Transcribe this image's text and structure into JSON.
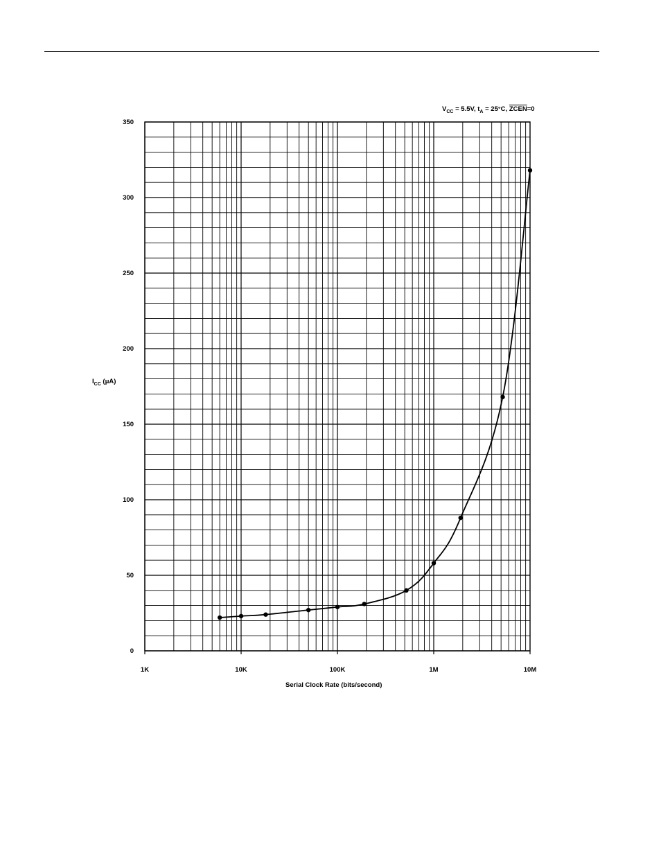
{
  "conditions": {
    "vcc_sym": "V",
    "vcc_sub": "CC",
    "vcc_val": " = 5.5V, ",
    "ta_sym": "t",
    "ta_sub": "A",
    "ta_val": " = 25°C, ",
    "zcen": "ZCEN",
    "zcen_val": "=0"
  },
  "y_axis_label": {
    "sym": "I",
    "sub": "CC",
    "unit": " (μA)"
  },
  "chart_data": {
    "type": "line",
    "title": "",
    "xlabel": "Serial Clock Rate (bits/second)",
    "ylabel": "ICC (μA)",
    "x_scale": "log",
    "xlim": [
      1000,
      10000000
    ],
    "ylim": [
      0,
      350
    ],
    "grid": true,
    "x_tick_values": [
      1000,
      10000,
      100000,
      1000000,
      10000000
    ],
    "x_tick_labels": [
      "1K",
      "10K",
      "100K",
      "1M",
      "10M"
    ],
    "y_tick_values": [
      0,
      50,
      100,
      150,
      200,
      250,
      300,
      350
    ],
    "y_tick_labels": [
      "0",
      "50",
      "100",
      "150",
      "200",
      "250",
      "300",
      "350"
    ],
    "series": [
      {
        "x": [
          6000,
          10000,
          18000,
          50000,
          100000,
          190000,
          520000,
          1000000,
          1900000,
          5200000,
          10000000
        ],
        "y": [
          22,
          23,
          24,
          27,
          29,
          31,
          40,
          58,
          88,
          168,
          318
        ]
      }
    ]
  }
}
